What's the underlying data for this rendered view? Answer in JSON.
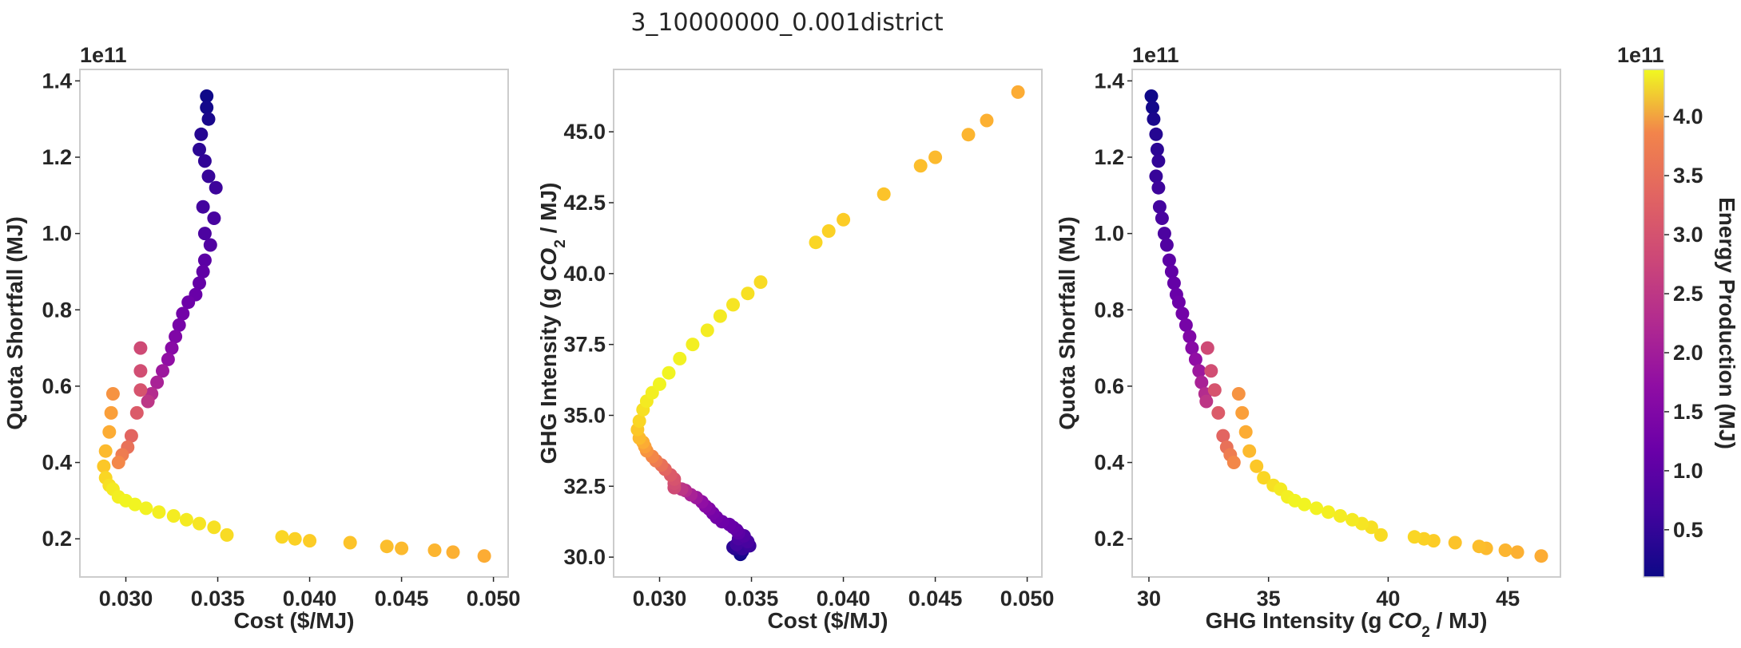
{
  "figure": {
    "title": "3_10000000_0.001district"
  },
  "chart_data": [
    {
      "type": "scatter",
      "xlabel": "Cost ($/MJ)",
      "ylabel": "Quota Shortfall (MJ)",
      "y_multiplier": "1e11",
      "xlim": [
        0.0275,
        0.0508
      ],
      "ylim": [
        10000000000.0,
        143000000000.0
      ],
      "xticks": [
        "0.030",
        "0.035",
        "0.040",
        "0.045",
        "0.050"
      ],
      "yticks": [
        "0.2",
        "0.4",
        "0.6",
        "0.8",
        "1.0",
        "1.2",
        "1.4"
      ],
      "grid": false,
      "color_by": "Energy Production (MJ)"
    },
    {
      "type": "scatter",
      "xlabel": "Cost ($/MJ)",
      "ylabel": "GHG Intensity (g CO2 / MJ)",
      "xlim": [
        0.0275,
        0.0508
      ],
      "ylim": [
        29.3,
        47.2
      ],
      "xticks": [
        "0.030",
        "0.035",
        "0.040",
        "0.045",
        "0.050"
      ],
      "yticks": [
        "30.0",
        "32.5",
        "35.0",
        "37.5",
        "40.0",
        "42.5",
        "45.0"
      ],
      "grid": false,
      "color_by": "Energy Production (MJ)"
    },
    {
      "type": "scatter",
      "xlabel": "GHG Intensity (g CO2 / MJ)",
      "ylabel": "Quota Shortfall (MJ)",
      "y_multiplier": "1e11",
      "xlim": [
        29.3,
        47.2
      ],
      "ylim": [
        10000000000.0,
        143000000000.0
      ],
      "xticks": [
        "30",
        "35",
        "40",
        "45"
      ],
      "yticks": [
        "0.2",
        "0.4",
        "0.6",
        "0.8",
        "1.0",
        "1.2",
        "1.4"
      ],
      "grid": false,
      "color_by": "Energy Production (MJ)"
    }
  ],
  "points": [
    {
      "cost": 0.0344,
      "ghg": 30.1,
      "quota": 136000000000.0,
      "energy": 12000000000.0
    },
    {
      "cost": 0.0344,
      "ghg": 30.15,
      "quota": 133000000000.0,
      "energy": 15000000000.0
    },
    {
      "cost": 0.0345,
      "ghg": 30.2,
      "quota": 130000000000.0,
      "energy": 20000000000.0
    },
    {
      "cost": 0.0341,
      "ghg": 30.3,
      "quota": 126000000000.0,
      "energy": 30000000000.0
    },
    {
      "cost": 0.034,
      "ghg": 30.35,
      "quota": 122000000000.0,
      "energy": 35000000000.0
    },
    {
      "cost": 0.0343,
      "ghg": 30.4,
      "quota": 119000000000.0,
      "energy": 40000000000.0
    },
    {
      "cost": 0.0345,
      "ghg": 30.3,
      "quota": 115000000000.0,
      "energy": 45000000000.0
    },
    {
      "cost": 0.0349,
      "ghg": 30.4,
      "quota": 112000000000.0,
      "energy": 50000000000.0
    },
    {
      "cost": 0.0342,
      "ghg": 30.45,
      "quota": 107000000000.0,
      "energy": 55000000000.0
    },
    {
      "cost": 0.0348,
      "ghg": 30.55,
      "quota": 104000000000.0,
      "energy": 60000000000.0
    },
    {
      "cost": 0.0343,
      "ghg": 30.65,
      "quota": 100000000000.0,
      "energy": 65000000000.0
    },
    {
      "cost": 0.0346,
      "ghg": 30.75,
      "quota": 97000000000.0,
      "energy": 70000000000.0
    },
    {
      "cost": 0.0343,
      "ghg": 30.85,
      "quota": 93000000000.0,
      "energy": 80000000000.0
    },
    {
      "cost": 0.0342,
      "ghg": 30.95,
      "quota": 90000000000.0,
      "energy": 85000000000.0
    },
    {
      "cost": 0.034,
      "ghg": 31.05,
      "quota": 87000000000.0,
      "energy": 90000000000.0
    },
    {
      "cost": 0.0338,
      "ghg": 31.15,
      "quota": 84000000000.0,
      "energy": 95000000000.0
    },
    {
      "cost": 0.0334,
      "ghg": 31.25,
      "quota": 82000000000.0,
      "energy": 100000000000.0
    },
    {
      "cost": 0.0331,
      "ghg": 31.4,
      "quota": 79000000000.0,
      "energy": 105000000000.0
    },
    {
      "cost": 0.0329,
      "ghg": 31.55,
      "quota": 76000000000.0,
      "energy": 110000000000.0
    },
    {
      "cost": 0.0327,
      "ghg": 31.7,
      "quota": 73000000000.0,
      "energy": 120000000000.0
    },
    {
      "cost": 0.0325,
      "ghg": 31.8,
      "quota": 70000000000.0,
      "energy": 130000000000.0
    },
    {
      "cost": 0.0323,
      "ghg": 31.95,
      "quota": 67000000000.0,
      "energy": 140000000000.0
    },
    {
      "cost": 0.032,
      "ghg": 32.1,
      "quota": 64000000000.0,
      "energy": 155000000000.0
    },
    {
      "cost": 0.0317,
      "ghg": 32.2,
      "quota": 61000000000.0,
      "energy": 170000000000.0
    },
    {
      "cost": 0.0314,
      "ghg": 32.35,
      "quota": 58000000000.0,
      "energy": 185000000000.0
    },
    {
      "cost": 0.0312,
      "ghg": 32.4,
      "quota": 56000000000.0,
      "energy": 200000000000.0
    },
    {
      "cost": 0.0308,
      "ghg": 32.45,
      "quota": 70000000000.0,
      "energy": 230000000000.0
    },
    {
      "cost": 0.0308,
      "ghg": 32.6,
      "quota": 64000000000.0,
      "energy": 235000000000.0
    },
    {
      "cost": 0.0308,
      "ghg": 32.75,
      "quota": 59000000000.0,
      "energy": 245000000000.0
    },
    {
      "cost": 0.0306,
      "ghg": 32.9,
      "quota": 53000000000.0,
      "energy": 255000000000.0
    },
    {
      "cost": 0.0303,
      "ghg": 33.1,
      "quota": 47000000000.0,
      "energy": 270000000000.0
    },
    {
      "cost": 0.0301,
      "ghg": 33.25,
      "quota": 44000000000.0,
      "energy": 285000000000.0
    },
    {
      "cost": 0.0298,
      "ghg": 33.4,
      "quota": 42000000000.0,
      "energy": 300000000000.0
    },
    {
      "cost": 0.0296,
      "ghg": 33.55,
      "quota": 40000000000.0,
      "energy": 315000000000.0
    },
    {
      "cost": 0.0293,
      "ghg": 33.75,
      "quota": 58000000000.0,
      "energy": 330000000000.0
    },
    {
      "cost": 0.0292,
      "ghg": 33.9,
      "quota": 53000000000.0,
      "energy": 345000000000.0
    },
    {
      "cost": 0.0291,
      "ghg": 34.05,
      "quota": 48000000000.0,
      "energy": 360000000000.0
    },
    {
      "cost": 0.0289,
      "ghg": 34.2,
      "quota": 43000000000.0,
      "energy": 375000000000.0
    },
    {
      "cost": 0.0288,
      "ghg": 34.5,
      "quota": 39000000000.0,
      "energy": 390000000000.0
    },
    {
      "cost": 0.0289,
      "ghg": 34.8,
      "quota": 36000000000.0,
      "energy": 405000000000.0
    },
    {
      "cost": 0.0291,
      "ghg": 35.2,
      "quota": 34000000000.0,
      "energy": 415000000000.0
    },
    {
      "cost": 0.0293,
      "ghg": 35.5,
      "quota": 33000000000.0,
      "energy": 425000000000.0
    },
    {
      "cost": 0.0296,
      "ghg": 35.8,
      "quota": 31000000000.0,
      "energy": 430000000000.0
    },
    {
      "cost": 0.03,
      "ghg": 36.1,
      "quota": 30000000000.0,
      "energy": 435000000000.0
    },
    {
      "cost": 0.0305,
      "ghg": 36.5,
      "quota": 29000000000.0,
      "energy": 435000000000.0
    },
    {
      "cost": 0.0311,
      "ghg": 37.0,
      "quota": 28000000000.0,
      "energy": 433000000000.0
    },
    {
      "cost": 0.0318,
      "ghg": 37.5,
      "quota": 27000000000.0,
      "energy": 430000000000.0
    },
    {
      "cost": 0.0326,
      "ghg": 38.0,
      "quota": 26000000000.0,
      "energy": 427000000000.0
    },
    {
      "cost": 0.0333,
      "ghg": 38.5,
      "quota": 25000000000.0,
      "energy": 425000000000.0
    },
    {
      "cost": 0.034,
      "ghg": 38.9,
      "quota": 24000000000.0,
      "energy": 420000000000.0
    },
    {
      "cost": 0.0348,
      "ghg": 39.3,
      "quota": 23000000000.0,
      "energy": 415000000000.0
    },
    {
      "cost": 0.0355,
      "ghg": 39.7,
      "quota": 21000000000.0,
      "energy": 410000000000.0
    },
    {
      "cost": 0.0385,
      "ghg": 41.1,
      "quota": 20500000000.0,
      "energy": 405000000000.0
    },
    {
      "cost": 0.0392,
      "ghg": 41.5,
      "quota": 20000000000.0,
      "energy": 400000000000.0
    },
    {
      "cost": 0.04,
      "ghg": 41.9,
      "quota": 19500000000.0,
      "energy": 395000000000.0
    },
    {
      "cost": 0.0422,
      "ghg": 42.8,
      "quota": 19000000000.0,
      "energy": 385000000000.0
    },
    {
      "cost": 0.0442,
      "ghg": 43.8,
      "quota": 18000000000.0,
      "energy": 380000000000.0
    },
    {
      "cost": 0.045,
      "ghg": 44.1,
      "quota": 17500000000.0,
      "energy": 375000000000.0
    },
    {
      "cost": 0.0468,
      "ghg": 44.9,
      "quota": 17000000000.0,
      "energy": 370000000000.0
    },
    {
      "cost": 0.0478,
      "ghg": 45.4,
      "quota": 16500000000.0,
      "energy": 365000000000.0
    },
    {
      "cost": 0.0495,
      "ghg": 46.4,
      "quota": 15500000000.0,
      "energy": 360000000000.0
    }
  ],
  "colorbar": {
    "label": "Energy Production (MJ)",
    "multiplier": "1e11",
    "ticks": [
      "0.5",
      "1.0",
      "1.5",
      "2.0",
      "2.5",
      "3.0",
      "3.5",
      "4.0"
    ],
    "range": [
      10000000000.0,
      440000000000.0
    ],
    "colormap": "plasma"
  }
}
